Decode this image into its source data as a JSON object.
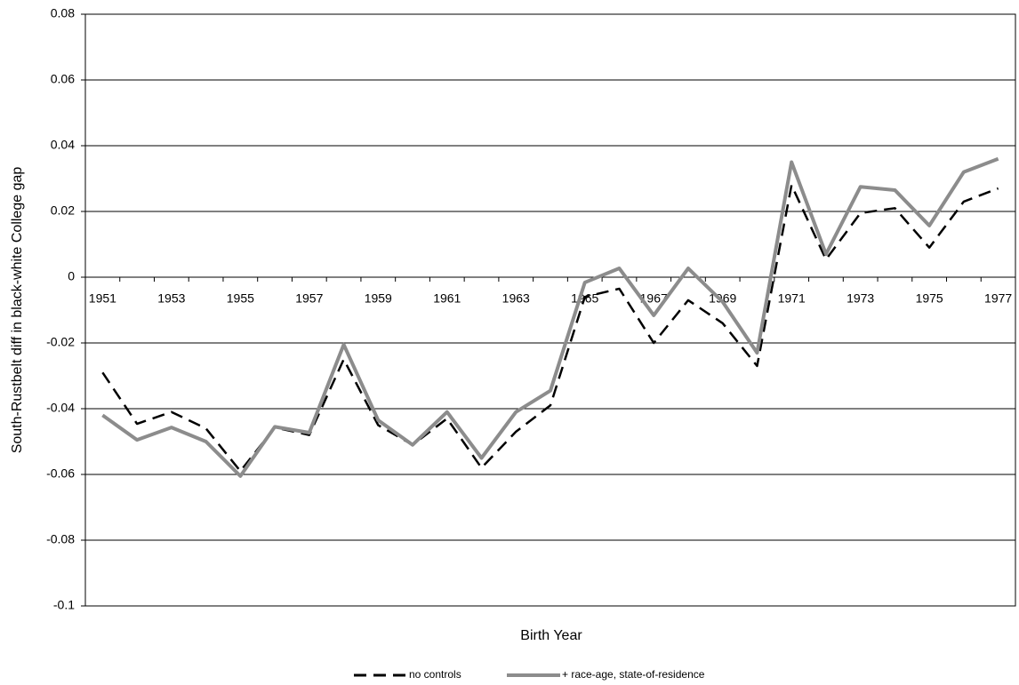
{
  "chart_data": {
    "type": "line",
    "x_label": "Birth Year",
    "y_label": "South-Rustbelt diff in black-white College gap",
    "categories": [
      1951,
      null,
      1953,
      null,
      1955,
      null,
      1957,
      null,
      1959,
      null,
      1961,
      null,
      1963,
      null,
      1965,
      null,
      1967,
      null,
      1969,
      null,
      1971,
      null,
      1973,
      null,
      1975,
      null,
      1977
    ],
    "series": [
      {
        "name": "no controls",
        "color": "#000000",
        "dash": true,
        "values": [
          -0.029,
          -0.0446,
          -0.041,
          -0.046,
          -0.059,
          -0.0457,
          -0.048,
          -0.025,
          -0.045,
          -0.051,
          -0.043,
          -0.058,
          -0.047,
          -0.039,
          -0.006,
          -0.0035,
          -0.02,
          -0.007,
          -0.014,
          -0.027,
          0.028,
          0.0054,
          0.0195,
          0.021,
          0.009,
          0.023,
          0.027
        ]
      },
      {
        "name": "+ race-age, state-of-residence",
        "color": "#8c8c8c",
        "dash": false,
        "values": [
          -0.042,
          -0.0495,
          -0.0457,
          -0.05,
          -0.0605,
          -0.0455,
          -0.0473,
          -0.0205,
          -0.0435,
          -0.051,
          -0.041,
          -0.055,
          -0.041,
          -0.0345,
          -0.0016,
          0.0027,
          -0.0116,
          0.0027,
          -0.0075,
          -0.023,
          0.035,
          0.007,
          0.0275,
          0.0265,
          0.0157,
          0.032,
          0.036
        ]
      }
    ],
    "ylim": [
      -0.1,
      0.08
    ],
    "yticks": [
      -0.1,
      -0.08,
      -0.06,
      -0.04,
      -0.02,
      0,
      0.02,
      0.04,
      0.06,
      0.08
    ],
    "grid": true,
    "legend": "bottom"
  }
}
